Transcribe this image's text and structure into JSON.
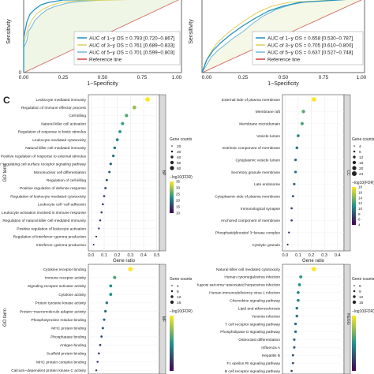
{
  "panel_label": "C",
  "roc_left": {
    "xlabel": "1−Specificity",
    "ylabel": "Sensitivity",
    "xticks": [
      "0.00",
      "0.25",
      "0.50",
      "0.75",
      "1.00"
    ],
    "legend": [
      "AUC of 1−y OS = 0.793 [0.720−0.867]",
      "AUC of 3−y OS = 0.761 [0.689−0.833]",
      "AUC of 5−y OS = 0.701 [0.599−0.803]",
      "Reference line"
    ]
  },
  "roc_right": {
    "xlabel": "1−Specificity",
    "ylabel": "Sensitivity",
    "xticks": [
      "0.00",
      "0.25",
      "0.50",
      "0.75",
      "1.00"
    ],
    "legend": [
      "AUC of 1−y OS = 0.658 [0.530−0.787]",
      "AUC of 3−y OS = 0.705 [0.610−0.800]",
      "AUC of 5−y OS = 0.637 [0.527−0.748]",
      "Reference line"
    ]
  },
  "colors": {
    "y1": "#1a8fbf",
    "y3": "#d9cf58",
    "y5": "#6fb7dd",
    "ref": "#d04040",
    "grad_hi": "#fde725",
    "grad_mid": "#21918c",
    "grad_lo": "#440154"
  },
  "chart_data": [
    {
      "type": "scatter",
      "strip": "BP",
      "ylabel": "GO term",
      "xlabel": "Gene ratio",
      "xticks": [
        "0.0",
        "0.1",
        "0.2",
        "0.3",
        "0.4",
        "0.5"
      ],
      "xlim": [
        -0.02,
        0.52
      ],
      "legend_size_title": "Gene counts",
      "legend_sizes": [
        "20",
        "30",
        "40",
        "50",
        "60"
      ],
      "legend_color_title": "−log10(FDR)",
      "legend_colors": [
        "10",
        "15",
        "20",
        "25",
        "30",
        "35"
      ],
      "terms": [
        "Leukocyte mediated immunity",
        "Regulation of immune effector process",
        "Cell killing",
        "Natural killer cell activation",
        "Regulation of response to biotic stimulus",
        "Leukocyte mediated cytotoxicity",
        "Natural killer cell mediated immunity",
        "Positive regulation of response to external stimulus",
        "Immune response−regulating cell surface receptor signaling pathway",
        "Mononuclear cell differentiation",
        "Regulation of cell killing",
        "Positive regulation of defense response",
        "Regulation of leukocyte mediated cytotoxicity",
        "Leukocyte cell−cell adhesion",
        "Leukocyte activation involved in immune response",
        "Regulation of natural killer cell mediated immunity",
        "Positive regulation of leukocyte activation",
        "Regulation of interferon−gamma production",
        "Interferon−gamma production"
      ],
      "values": [
        0.43,
        0.33,
        0.27,
        0.24,
        0.22,
        0.2,
        0.18,
        0.17,
        0.15,
        0.14,
        0.12,
        0.11,
        0.1,
        0.09,
        0.08,
        0.07,
        0.06,
        0.04,
        0.02
      ]
    },
    {
      "type": "scatter",
      "strip": "CC",
      "ylabel": "",
      "xlabel": "Gene ratio",
      "xticks": [
        "0.0",
        "0.1",
        "0.2",
        "0.3",
        "0.4"
      ],
      "xlim": [
        -0.02,
        0.45
      ],
      "legend_size_title": "Gene counts",
      "legend_sizes": [
        "4",
        "8",
        "12",
        "16",
        "20",
        "24"
      ],
      "legend_color_title": "−log10(FDR)",
      "legend_colors": [
        "4",
        "6",
        "8",
        "10",
        "12",
        "14",
        "16",
        "18"
      ],
      "terms": [
        "External side of plasma membrane",
        "Membrane raft",
        "Membrane microdomain",
        "Vesicle lumen",
        "Extrinsic component of membrane",
        "Cytoplasmic vesicle lumen",
        "Secretory granule membrane",
        "Late endosome",
        "Cytoplasmic side of plasma membrane",
        "Immunological synapse",
        "Anchored component of membrane",
        "Phosphatidylinositol 3−kinase complex",
        "Cytolytic granule"
      ],
      "values": [
        0.22,
        0.14,
        0.13,
        0.1,
        0.09,
        0.08,
        0.08,
        0.07,
        0.06,
        0.05,
        0.05,
        0.03,
        0.02
      ]
    },
    {
      "type": "scatter",
      "strip": "MF",
      "ylabel": "GO term",
      "xlabel": "",
      "xticks": [],
      "xlim": [
        -0.02,
        0.52
      ],
      "legend_size_title": "Gene counts",
      "legend_sizes": [
        "4",
        "8",
        "12",
        "16"
      ],
      "legend_color_title": "−log10(FDR)",
      "legend_colors": [],
      "terms": [
        "Cytokine receptor binding",
        "Immune receptor activity",
        "Signaling receptor activator activity",
        "Cytokine activity",
        "Protein tyrosine kinase activity",
        "Protein−macromolecule adaptor activity",
        "Phosphotyrosine residue binding",
        "MHC protein binding",
        "Phosphatase binding",
        "Antigen binding",
        "Scaffold protein binding",
        "MHC protein complex binding",
        "Calcium−dependent protein kinase C activity",
        "Phospholipase activator activity"
      ],
      "values": [
        0.3,
        0.18,
        0.15,
        0.15,
        0.12,
        0.11,
        0.1,
        0.09,
        0.08,
        0.07,
        0.06,
        0.05,
        0.04,
        0.03
      ]
    },
    {
      "type": "scatter",
      "strip": "KEGG",
      "ylabel": "",
      "xlabel": "",
      "xticks": [],
      "xlim": [
        -0.02,
        0.45
      ],
      "legend_size_title": "Gene counts",
      "legend_sizes": [
        "6",
        "9",
        "12",
        "15"
      ],
      "legend_color_title": "−log10(FDR)",
      "legend_colors": [],
      "terms": [
        "Natural killer cell mediated cytotoxicity",
        "Human cytomegalovirus infection",
        "Kaposi sarcoma−associated herpesvirus infection",
        "Human immunodeficiency virus 1 infection",
        "Chemokine signaling pathway",
        "Lipid and atherosclerosis",
        "Yersinia infection",
        "T cell receptor signaling pathway",
        "Phospholipase D signaling pathway",
        "Osteoclast differentiation",
        "Influenza A",
        "Hepatitis B",
        "Fc epsilon RI signaling pathway",
        "B cell receptor signaling pathway",
        "Fc gamma R−mediated phagocytosis"
      ],
      "values": [
        0.22,
        0.12,
        0.11,
        0.1,
        0.1,
        0.09,
        0.09,
        0.08,
        0.08,
        0.07,
        0.07,
        0.06,
        0.06,
        0.05,
        0.05
      ]
    }
  ]
}
